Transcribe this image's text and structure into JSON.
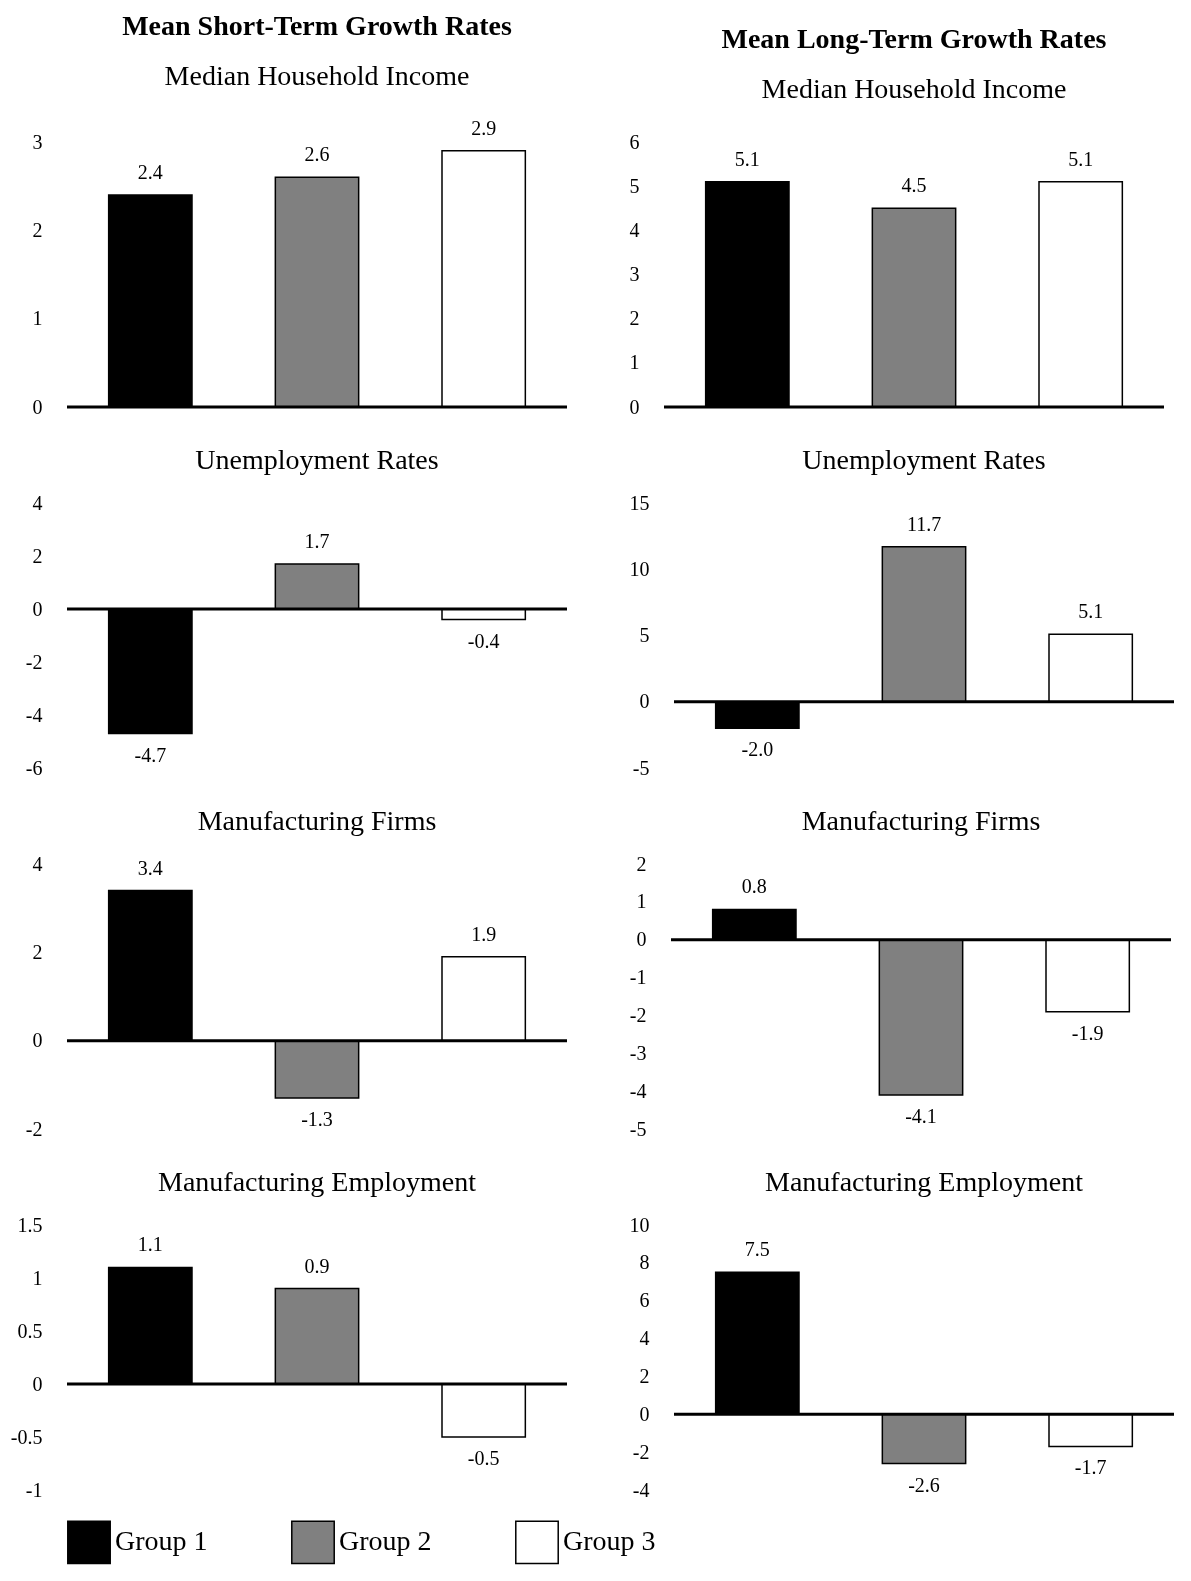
{
  "chart_data": [
    {
      "type": "bar",
      "title": "Mean Short-Term Growth Rates",
      "subtitle": "Median Household Income",
      "categories": [
        null
      ],
      "series": [
        {
          "name": "Group 1",
          "color": "#000000",
          "values": [
            2.4
          ],
          "value_labels": [
            "2.4"
          ]
        },
        {
          "name": "Group 2",
          "color": "#808080",
          "values": [
            2.6
          ],
          "value_labels": [
            "2.6"
          ]
        },
        {
          "name": "Group 3",
          "color": "#ffffff",
          "values": [
            2.9
          ],
          "value_labels": [
            "2.9"
          ]
        }
      ],
      "ylim": [
        0,
        3
      ],
      "yticks": [
        0,
        1,
        2,
        3
      ],
      "tick_labels": "y",
      "legend": "bottom",
      "ref_lines": [
        {
          "axis": "y",
          "value": 0,
          "color": "#000000"
        }
      ]
    },
    {
      "type": "bar",
      "title": "Mean Long-Term Growth Rates",
      "subtitle": "Median Household Income",
      "categories": [
        null
      ],
      "series": [
        {
          "name": "Group 1",
          "color": "#000000",
          "values": [
            5.1
          ],
          "value_labels": [
            "5.1"
          ]
        },
        {
          "name": "Group 2",
          "color": "#808080",
          "values": [
            4.5
          ],
          "value_labels": [
            "4.5"
          ]
        },
        {
          "name": "Group 3",
          "color": "#ffffff",
          "values": [
            5.1
          ],
          "value_labels": [
            "5.1"
          ]
        }
      ],
      "ylim": [
        0,
        6
      ],
      "yticks": [
        0,
        1,
        2,
        3,
        4,
        5,
        6
      ],
      "tick_labels": "y",
      "legend": "bottom",
      "ref_lines": [
        {
          "axis": "y",
          "value": 0,
          "color": "#000000"
        }
      ]
    },
    {
      "type": "bar",
      "title": "Unemployment Rates",
      "categories": [
        null
      ],
      "series": [
        {
          "name": "Group 1",
          "color": "#000000",
          "values": [
            -4.7
          ],
          "value_labels": [
            "-4.7"
          ]
        },
        {
          "name": "Group 2",
          "color": "#808080",
          "values": [
            1.7
          ],
          "value_labels": [
            "1.7"
          ]
        },
        {
          "name": "Group 3",
          "color": "#ffffff",
          "values": [
            -0.4
          ],
          "value_labels": [
            "-0.4"
          ]
        }
      ],
      "ylim": [
        -6,
        4
      ],
      "yticks": [
        -6,
        -4,
        -2,
        0,
        2,
        4
      ],
      "tick_labels": "y",
      "legend": "bottom",
      "ref_lines": [
        {
          "axis": "y",
          "value": 0,
          "color": "#000000"
        }
      ]
    },
    {
      "type": "bar",
      "title": "Unemployment Rates",
      "categories": [
        null
      ],
      "series": [
        {
          "name": "Group 1",
          "color": "#000000",
          "values": [
            -2.0
          ],
          "value_labels": [
            "-2.0"
          ]
        },
        {
          "name": "Group 2",
          "color": "#808080",
          "values": [
            11.7
          ],
          "value_labels": [
            "11.7"
          ]
        },
        {
          "name": "Group 3",
          "color": "#ffffff",
          "values": [
            5.1
          ],
          "value_labels": [
            "5.1"
          ]
        }
      ],
      "ylim": [
        -5,
        15
      ],
      "yticks": [
        -5,
        0,
        5,
        10,
        15
      ],
      "tick_labels": "y",
      "legend": "bottom",
      "ref_lines": [
        {
          "axis": "y",
          "value": 0,
          "color": "#000000"
        }
      ]
    },
    {
      "type": "bar",
      "title": "Manufacturing Firms",
      "categories": [
        null
      ],
      "series": [
        {
          "name": "Group 1",
          "color": "#000000",
          "values": [
            3.4
          ],
          "value_labels": [
            "3.4"
          ]
        },
        {
          "name": "Group 2",
          "color": "#808080",
          "values": [
            -1.3
          ],
          "value_labels": [
            "-1.3"
          ]
        },
        {
          "name": "Group 3",
          "color": "#ffffff",
          "values": [
            1.9
          ],
          "value_labels": [
            "1.9"
          ]
        }
      ],
      "ylim": [
        -2,
        4
      ],
      "yticks": [
        -2,
        0,
        2,
        4
      ],
      "tick_labels": "y",
      "legend": "bottom",
      "ref_lines": [
        {
          "axis": "y",
          "value": 0,
          "color": "#000000"
        }
      ]
    },
    {
      "type": "bar",
      "title": "Manufacturing Firms",
      "categories": [
        null
      ],
      "series": [
        {
          "name": "Group 1",
          "color": "#000000",
          "values": [
            0.8
          ],
          "value_labels": [
            "0.8"
          ]
        },
        {
          "name": "Group 2",
          "color": "#808080",
          "values": [
            -4.1
          ],
          "value_labels": [
            "-4.1"
          ]
        },
        {
          "name": "Group 3",
          "color": "#ffffff",
          "values": [
            -1.9
          ],
          "value_labels": [
            "-1.9"
          ]
        }
      ],
      "ylim": [
        -5,
        2
      ],
      "yticks": [
        -5,
        -4,
        -3,
        -2,
        -1,
        0,
        1,
        2
      ],
      "tick_labels": "y",
      "legend": "bottom",
      "ref_lines": [
        {
          "axis": "y",
          "value": 0,
          "color": "#000000"
        }
      ]
    },
    {
      "type": "bar",
      "title": "Manufacturing Employment",
      "categories": [
        null
      ],
      "series": [
        {
          "name": "Group 1",
          "color": "#000000",
          "values": [
            1.1
          ],
          "value_labels": [
            "1.1"
          ]
        },
        {
          "name": "Group 2",
          "color": "#808080",
          "values": [
            0.9
          ],
          "value_labels": [
            "0.9"
          ]
        },
        {
          "name": "Group 3",
          "color": "#ffffff",
          "values": [
            -0.5
          ],
          "value_labels": [
            "-0.5"
          ]
        }
      ],
      "ylim": [
        -1,
        1.5
      ],
      "yticks": [
        -1,
        -0.5,
        0,
        0.5,
        1,
        1.5
      ],
      "tick_labels": "y",
      "legend": "bottom",
      "ref_lines": [
        {
          "axis": "y",
          "value": 0,
          "color": "#000000"
        }
      ]
    },
    {
      "type": "bar",
      "title": "Manufacturing Employment",
      "categories": [
        null
      ],
      "series": [
        {
          "name": "Group 1",
          "color": "#000000",
          "values": [
            7.5
          ],
          "value_labels": [
            "7.5"
          ]
        },
        {
          "name": "Group 2",
          "color": "#808080",
          "values": [
            -2.6
          ],
          "value_labels": [
            "-2.6"
          ]
        },
        {
          "name": "Group 3",
          "color": "#ffffff",
          "values": [
            -1.7
          ],
          "value_labels": [
            "-1.7"
          ]
        }
      ],
      "ylim": [
        -4,
        10
      ],
      "yticks": [
        -4,
        -2,
        0,
        2,
        4,
        6,
        8,
        10
      ],
      "tick_labels": "y",
      "legend": "bottom",
      "ref_lines": [
        {
          "axis": "y",
          "value": 0,
          "color": "#000000"
        }
      ]
    }
  ]
}
